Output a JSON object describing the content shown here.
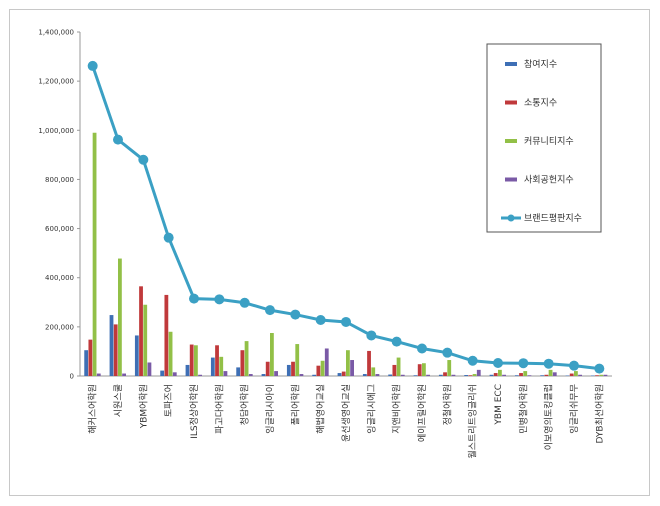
{
  "chart_data": {
    "type": "bar",
    "categories": [
      "해커스어학원",
      "시원스쿨",
      "YBM어학원",
      "토파즈어",
      "ILS정상어학원",
      "파고다어학원",
      "청담어학원",
      "잉글리시아이",
      "폴리어학원",
      "해법영어교실",
      "윤선생영어교실",
      "잉글리시에그",
      "지앤비어학원",
      "에이프릴어학원",
      "정철어학원",
      "월스트리트잉글리쉬",
      "YBM ECC",
      "민병철어학원",
      "이보영의토킹클럽",
      "잉글리쉬무무",
      "DYB최선어학원"
    ],
    "series": [
      {
        "name": "참여지수",
        "color": "#3e6fb5",
        "kind": "bar",
        "values": [
          105000,
          248000,
          165000,
          22000,
          45000,
          75000,
          35000,
          8000,
          45000,
          5000,
          12000,
          8000,
          6000,
          3000,
          5000,
          4000,
          5000,
          3000,
          3000,
          2000,
          2000
        ]
      },
      {
        "name": "소통지수",
        "color": "#c0393b",
        "kind": "bar",
        "values": [
          148000,
          210000,
          365000,
          330000,
          128000,
          125000,
          105000,
          58000,
          58000,
          42000,
          18000,
          102000,
          45000,
          48000,
          15000,
          3000,
          12000,
          12000,
          5000,
          10000,
          3000
        ]
      },
      {
        "name": "커뮤니티지수",
        "color": "#92c047",
        "kind": "bar",
        "values": [
          990000,
          478000,
          290000,
          180000,
          125000,
          78000,
          142000,
          175000,
          130000,
          62000,
          105000,
          35000,
          75000,
          52000,
          65000,
          8000,
          25000,
          20000,
          25000,
          20000,
          5000
        ]
      },
      {
        "name": "사회공헌지수",
        "color": "#7a5aa6",
        "kind": "bar",
        "values": [
          10000,
          10000,
          55000,
          15000,
          5000,
          20000,
          8000,
          20000,
          8000,
          112000,
          65000,
          8000,
          5000,
          5000,
          5000,
          25000,
          5000,
          3000,
          15000,
          5000,
          5000
        ]
      },
      {
        "name": "브랜드평판지수",
        "color": "#3ba0c4",
        "kind": "line",
        "values": [
          1262000,
          962000,
          880000,
          563000,
          315000,
          312000,
          298000,
          268000,
          250000,
          228000,
          220000,
          165000,
          140000,
          112000,
          95000,
          62000,
          53000,
          52000,
          50000,
          42000,
          30000
        ]
      }
    ],
    "ylim": [
      0,
      1400000
    ],
    "yticks": [
      "0",
      "200,000",
      "400,000",
      "600,000",
      "800,000",
      "1,000,000",
      "1,200,000",
      "1,400,000"
    ],
    "ytick_values": [
      0,
      200000,
      400000,
      600000,
      800000,
      1000000,
      1200000,
      1400000
    ],
    "legend_position": "right",
    "grid": false
  }
}
